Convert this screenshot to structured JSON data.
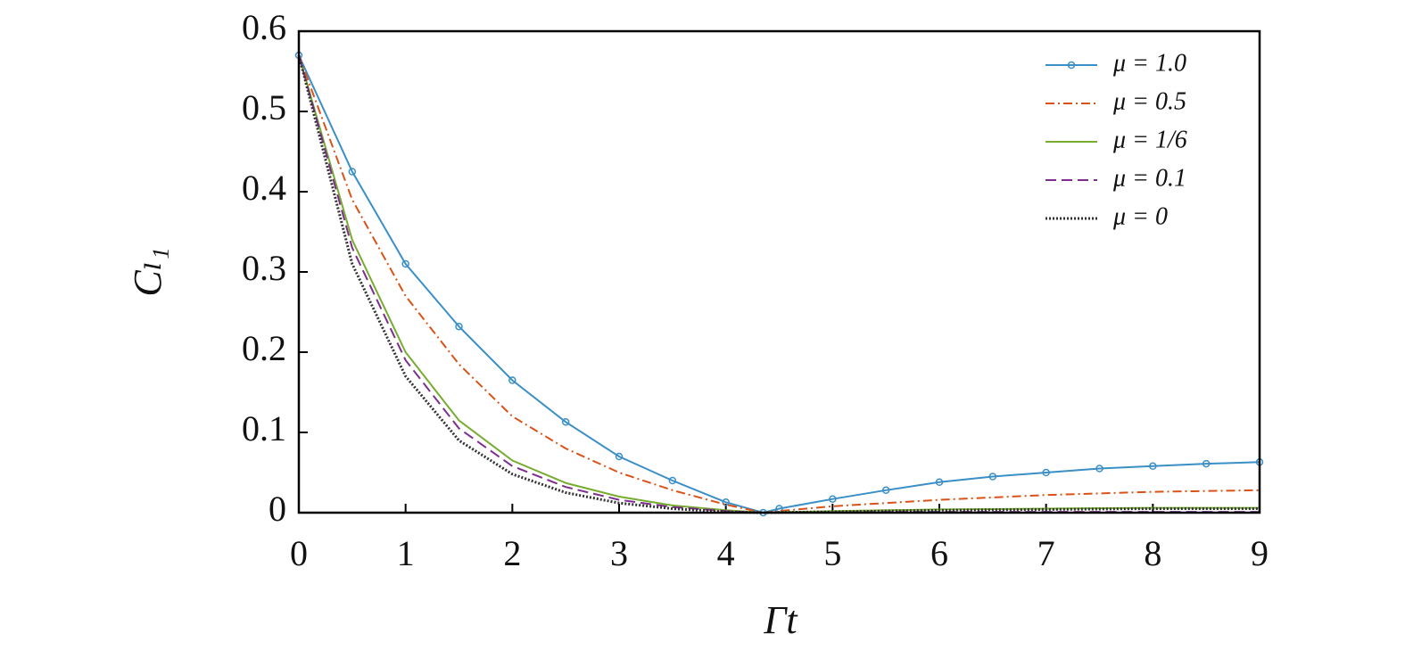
{
  "chart_data": {
    "type": "line",
    "xlabel": "Γt",
    "ylabel": "Cₗ₁",
    "x": [
      0,
      0.5,
      1,
      1.5,
      2,
      2.5,
      3,
      3.5,
      4,
      4.35,
      4.5,
      5,
      5.5,
      6,
      6.5,
      7,
      7.5,
      8,
      8.5,
      9
    ],
    "series": [
      {
        "name": "μ = 1.0",
        "color": "#3a8fc7",
        "dash": "solid",
        "marker": "circle",
        "values": [
          0.57,
          0.425,
          0.31,
          0.232,
          0.165,
          0.113,
          0.07,
          0.04,
          0.013,
          0,
          0.005,
          0.017,
          0.028,
          0.038,
          0.045,
          0.05,
          0.055,
          0.058,
          0.061,
          0.063
        ]
      },
      {
        "name": "μ = 0.5",
        "color": "#d95319",
        "dash": "dashdot",
        "values": [
          0.57,
          0.39,
          0.27,
          0.185,
          0.12,
          0.08,
          0.05,
          0.028,
          0.01,
          0,
          0.002,
          0.008,
          0.012,
          0.016,
          0.019,
          0.022,
          0.024,
          0.026,
          0.027,
          0.028
        ]
      },
      {
        "name": "μ = 1/6",
        "color": "#77ac30",
        "dash": "solid",
        "values": [
          0.57,
          0.34,
          0.2,
          0.115,
          0.065,
          0.037,
          0.02,
          0.009,
          0.003,
          0,
          0.0005,
          0.002,
          0.003,
          0.004,
          0.0045,
          0.005,
          0.0055,
          0.006,
          0.006,
          0.006
        ]
      },
      {
        "name": "μ = 0.1",
        "color": "#7e2f8e",
        "dash": "dashed",
        "values": [
          0.57,
          0.33,
          0.19,
          0.105,
          0.058,
          0.032,
          0.016,
          0.007,
          0.002,
          0,
          0,
          0.0005,
          0.001,
          0.001,
          0.001,
          0.001,
          0.001,
          0.001,
          0.001,
          0.001
        ]
      },
      {
        "name": "μ = 0",
        "color": "#333333",
        "dash": "dotted",
        "values": [
          0.57,
          0.31,
          0.17,
          0.09,
          0.048,
          0.025,
          0.012,
          0.005,
          0.001,
          0,
          0.0003,
          0.001,
          0.002,
          0.003,
          0.0035,
          0.004,
          0.0045,
          0.005,
          0.005,
          0.005
        ]
      }
    ],
    "xlim": [
      0,
      9
    ],
    "xticks": [
      0,
      1,
      2,
      3,
      4,
      5,
      6,
      7,
      8,
      9
    ],
    "ylim": [
      0,
      0.6
    ],
    "yticks": [
      0,
      0.1,
      0.2,
      0.3,
      0.4,
      0.5,
      0.6
    ],
    "legend": "upper right",
    "grid": false
  }
}
